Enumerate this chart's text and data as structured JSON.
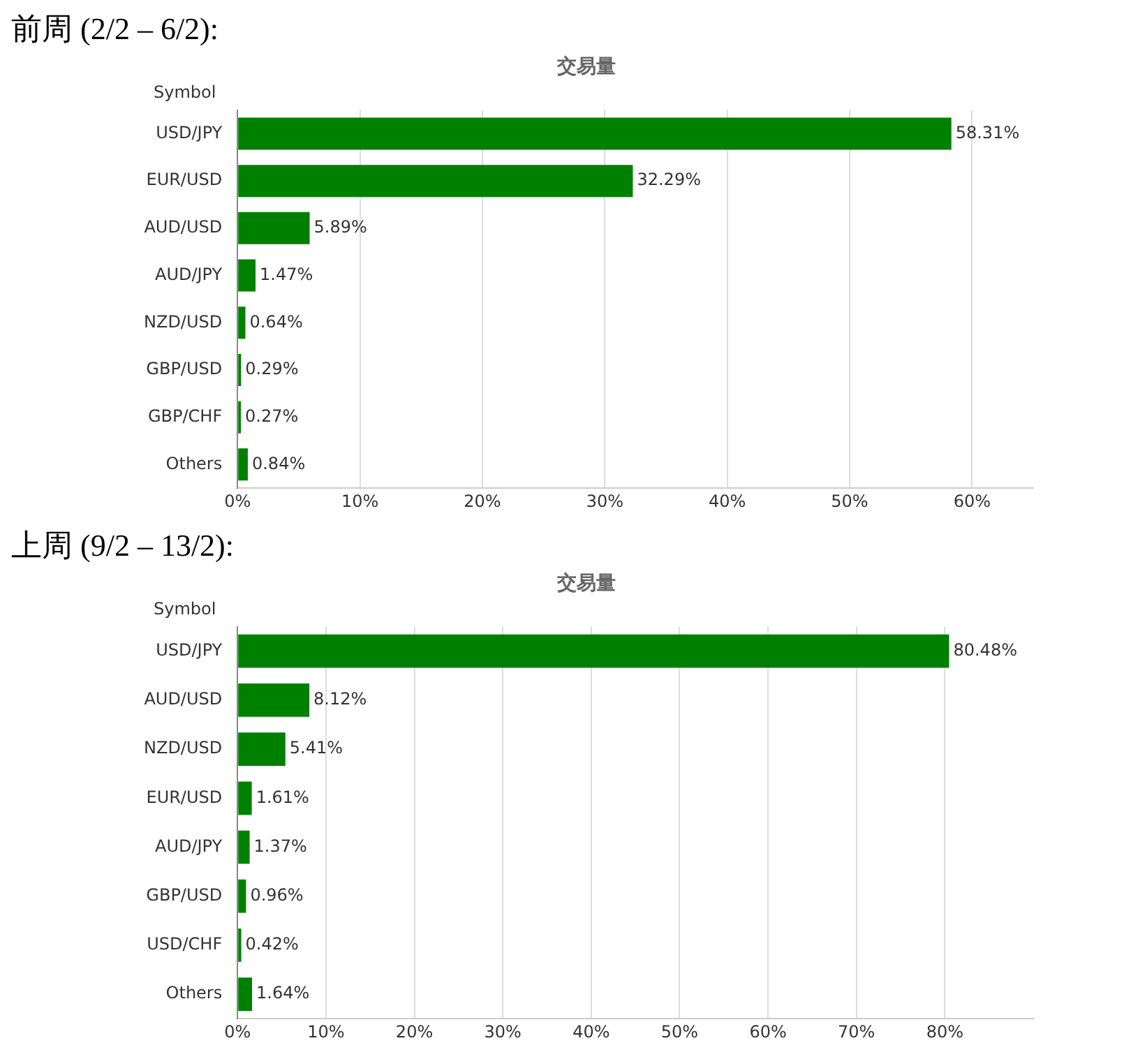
{
  "chart_data": [
    {
      "type": "bar",
      "orientation": "horizontal",
      "title": "前周 (2/2 – 6/2):",
      "subtitle": "交易量",
      "ylabel": "Symbol",
      "categories": [
        "USD/JPY",
        "EUR/USD",
        "AUD/USD",
        "AUD/JPY",
        "NZD/USD",
        "GBP/USD",
        "GBP/CHF",
        "Others"
      ],
      "values": [
        58.31,
        32.29,
        5.89,
        1.47,
        0.64,
        0.29,
        0.27,
        0.84
      ],
      "value_labels": [
        "58.31%",
        "32.29%",
        "5.89%",
        "1.47%",
        "0.64%",
        "0.29%",
        "0.27%",
        "0.84%"
      ],
      "color": "#008000",
      "xlim": [
        0,
        65
      ],
      "xticks": [
        {
          "value": 0,
          "label": "0%"
        },
        {
          "value": 10,
          "label": "10%"
        },
        {
          "value": 20,
          "label": "20%"
        },
        {
          "value": 30,
          "label": "30%"
        },
        {
          "value": 40,
          "label": "40%"
        },
        {
          "value": 50,
          "label": "50%"
        },
        {
          "value": 60,
          "label": "60%"
        }
      ],
      "grid": "x",
      "legend": false
    },
    {
      "type": "bar",
      "orientation": "horizontal",
      "title": "上周 (9/2 – 13/2):",
      "subtitle": "交易量",
      "ylabel": "Symbol",
      "categories": [
        "USD/JPY",
        "AUD/USD",
        "NZD/USD",
        "EUR/USD",
        "AUD/JPY",
        "GBP/USD",
        "USD/CHF",
        "Others"
      ],
      "values": [
        80.48,
        8.12,
        5.41,
        1.61,
        1.37,
        0.96,
        0.42,
        1.64
      ],
      "value_labels": [
        "80.48%",
        "8.12%",
        "5.41%",
        "1.61%",
        "1.37%",
        "0.96%",
        "0.42%",
        "1.64%"
      ],
      "color": "#008000",
      "xlim": [
        0,
        90
      ],
      "xticks": [
        {
          "value": 0,
          "label": "0%"
        },
        {
          "value": 10,
          "label": "10%"
        },
        {
          "value": 20,
          "label": "20%"
        },
        {
          "value": 30,
          "label": "30%"
        },
        {
          "value": 40,
          "label": "40%"
        },
        {
          "value": 50,
          "label": "50%"
        },
        {
          "value": 60,
          "label": "60%"
        },
        {
          "value": 70,
          "label": "70%"
        },
        {
          "value": 80,
          "label": "80%"
        }
      ],
      "grid": "x",
      "legend": false
    }
  ]
}
